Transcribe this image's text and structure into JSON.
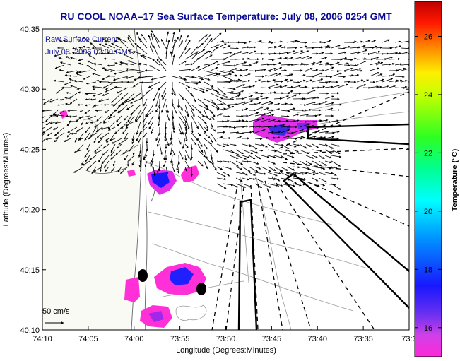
{
  "title": "RU COOL  NOAA–17  Sea Surface Temperature:  July 08, 2006 0254 GMT",
  "legend": {
    "line1": "Raw Surface Current",
    "line2": "July 08, 2006 02:00 GMT"
  },
  "scale_label": "50 cm/s",
  "axes": {
    "xlabel": "Longitude (Degrees:Minutes)",
    "ylabel": "Latitude (Degrees:Minutes)",
    "x_ticks": [
      "74:10",
      "74:05",
      "74:00",
      "73:55",
      "73:50",
      "73:45",
      "73:40",
      "73:35",
      "73:3"
    ],
    "y_ticks": [
      "40:35",
      "40:30",
      "40:25",
      "40:20",
      "40:15",
      "40:10"
    ]
  },
  "colorbar": {
    "label": "Temperature (°C)",
    "ticks": [
      "26",
      "24",
      "22",
      "20",
      "18",
      "16"
    ],
    "ticks_values": [
      26,
      24,
      22,
      20,
      18,
      16
    ],
    "range": [
      15,
      27.2
    ]
  },
  "colors": {
    "title": "#0a0a96",
    "legend": "#1c1ca8",
    "land": "#fafaf5",
    "coast": "#6e6e6e"
  }
}
